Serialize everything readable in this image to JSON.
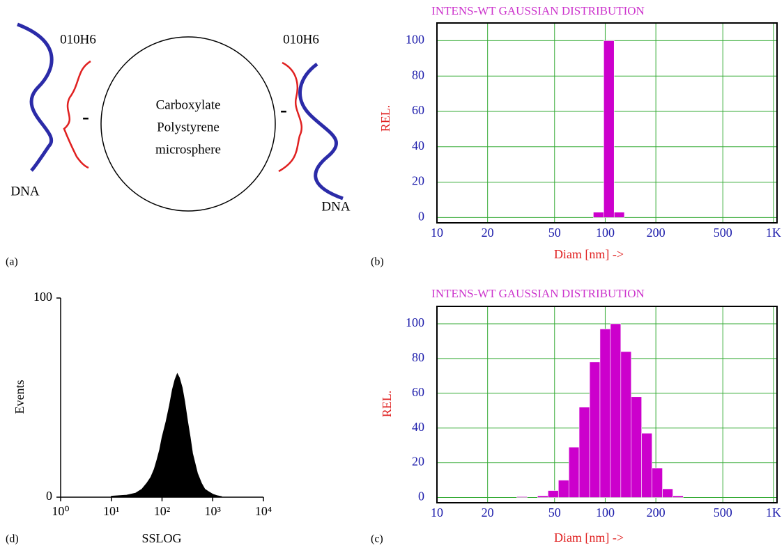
{
  "diagram": {
    "panel_label": "(a)",
    "antibody_left": "010H6",
    "antibody_right": "010H6",
    "bead_lines": [
      "Carboxylate",
      "Polystyrene",
      "microsphere"
    ],
    "dna_left": "DNA",
    "dna_right": "DNA",
    "charge_left": "-",
    "charge_right": "-"
  },
  "chart_data": [
    {
      "type": "histogram",
      "panel_label": "(b)",
      "title": "INTENS-WT GAUSSIAN DISTRIBUTION",
      "x_label": "Diam [nm] ->",
      "y_label": "REL.",
      "xscale": "log",
      "grid": true,
      "color": "#cc00cc",
      "bins": [
        85,
        98,
        113,
        130
      ],
      "values": [
        3,
        100,
        3
      ],
      "xlim": [
        10,
        1050
      ],
      "ylim": [
        -3,
        110
      ],
      "xticks": [
        10,
        20,
        50,
        100,
        200,
        500,
        {
          "value": 1000,
          "label": "1K"
        }
      ],
      "yticks": [
        0,
        20,
        40,
        60,
        80,
        100
      ]
    },
    {
      "type": "histogram",
      "panel_label": "(c)",
      "title": "INTENS-WT GAUSSIAN DISTRIBUTION",
      "x_label": "Diam [nm] ->",
      "y_label": "REL.",
      "xscale": "log",
      "grid": true,
      "color": "#cc00cc",
      "bins": [
        29.8,
        34.4,
        39.6,
        45.7,
        52.7,
        60.8,
        70.0,
        80.8,
        93.1,
        107.4,
        123.8,
        142.8,
        164.6,
        189.8,
        218.9,
        252.4,
        291.0
      ],
      "values": [
        0.5,
        0,
        1,
        4,
        10,
        29,
        52,
        78,
        97,
        100,
        84,
        58,
        37,
        17,
        5,
        1
      ],
      "xlim": [
        10,
        1050
      ],
      "ylim": [
        -3,
        110
      ],
      "xticks": [
        10,
        20,
        50,
        100,
        200,
        500,
        {
          "value": 1000,
          "label": "1K"
        }
      ],
      "yticks": [
        0,
        20,
        40,
        60,
        80,
        100
      ]
    },
    {
      "type": "area",
      "panel_label": "(d)",
      "x_label": "SSLOG",
      "y_label": "Events",
      "xscale": "log",
      "grid": false,
      "color": "#000000",
      "x": [
        10,
        20,
        30,
        40,
        50,
        60,
        70,
        80,
        90,
        100,
        120,
        140,
        160,
        180,
        200,
        220,
        250,
        280,
        320,
        360,
        400,
        500,
        600,
        700,
        800,
        1000,
        1200,
        1500
      ],
      "values": [
        0.5,
        1,
        2,
        4,
        7,
        10,
        14,
        19,
        24,
        30,
        38,
        46,
        54,
        59,
        62,
        60,
        55,
        48,
        38,
        30,
        22,
        12,
        7,
        4,
        3,
        1.5,
        0.8,
        0.3
      ],
      "xlim": [
        1,
        10000
      ],
      "ylim": [
        0,
        100
      ],
      "xticks": [
        {
          "value": 1,
          "label": "10⁰"
        },
        {
          "value": 10,
          "label": "10¹"
        },
        {
          "value": 100,
          "label": "10²"
        },
        {
          "value": 1000,
          "label": "10³"
        },
        {
          "value": 10000,
          "label": "10⁴"
        }
      ],
      "yticks": [
        0,
        100
      ]
    }
  ]
}
